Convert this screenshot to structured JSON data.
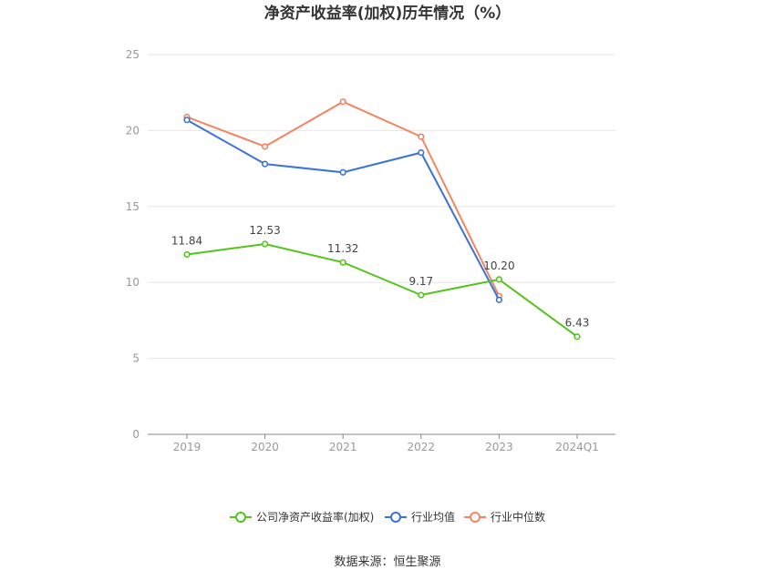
{
  "chart_data": {
    "type": "line",
    "title": "净资产收益率(加权)历年情况（%）",
    "categories": [
      "2019",
      "2020",
      "2021",
      "2022",
      "2023",
      "2024Q1"
    ],
    "ylim": [
      0,
      25
    ],
    "yticks": [
      0,
      5,
      10,
      15,
      20,
      25
    ],
    "grid": true,
    "legend_position": "bottom",
    "series": [
      {
        "name": "公司净资产收益率(加权)",
        "color": "#52c41a",
        "values": [
          11.84,
          12.53,
          11.32,
          9.17,
          10.2,
          6.43
        ],
        "labels": [
          "11.84",
          "12.53",
          "11.32",
          "9.17",
          "10.20",
          "6.43"
        ]
      },
      {
        "name": "行业均值",
        "color": "#3a74d9",
        "values": [
          20.7,
          17.8,
          17.25,
          18.55,
          8.85,
          null
        ],
        "labels": null
      },
      {
        "name": "行业中位数",
        "color": "#f4845f",
        "values": [
          20.9,
          18.95,
          21.9,
          19.6,
          9.1,
          null
        ],
        "labels": null
      }
    ]
  },
  "footer": {
    "source": "数据来源：恒生聚源"
  }
}
